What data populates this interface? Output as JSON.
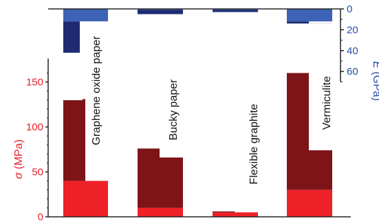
{
  "chart_data": {
    "type": "bar",
    "categories": [
      "Graphene oxide paper",
      "Bucky paper",
      "Flexible graphite",
      "Vermiculite"
    ],
    "stress_axis": {
      "label_symbol": "σ",
      "label_unit": " (MPa)",
      "ylim": [
        0,
        170
      ],
      "ticks": [
        0,
        50,
        100,
        150
      ],
      "color": "#e8202a"
    },
    "modulus_axis": {
      "label_symbol": "E",
      "label_unit": " (GPa)",
      "ylim": [
        0,
        70
      ],
      "ticks": [
        0,
        20,
        40,
        60
      ],
      "inverted": true,
      "color": "#2a4fa3"
    },
    "stress_series": [
      {
        "category": "Graphene oxide paper",
        "low": 40,
        "high": 131
      },
      {
        "category": "Bucky paper",
        "low": 10,
        "high": 76
      },
      {
        "category": "Flexible graphite",
        "low": 5,
        "high": 6
      },
      {
        "category": "Vermiculite",
        "low": 30,
        "high": 160
      }
    ],
    "modulus_series": [
      {
        "category": "Graphene oxide paper",
        "low": 12,
        "high": 42
      },
      {
        "category": "Bucky paper",
        "low": 1,
        "high": 5
      },
      {
        "category": "Flexible graphite",
        "low": 1,
        "high": 3
      },
      {
        "category": "Vermiculite",
        "low": 12,
        "high": 14
      }
    ],
    "colors": {
      "stress_low": "#ee2128",
      "stress_high": "#7d1518",
      "modulus_low": "#3c63b5",
      "modulus_high": "#1f2a72"
    }
  }
}
